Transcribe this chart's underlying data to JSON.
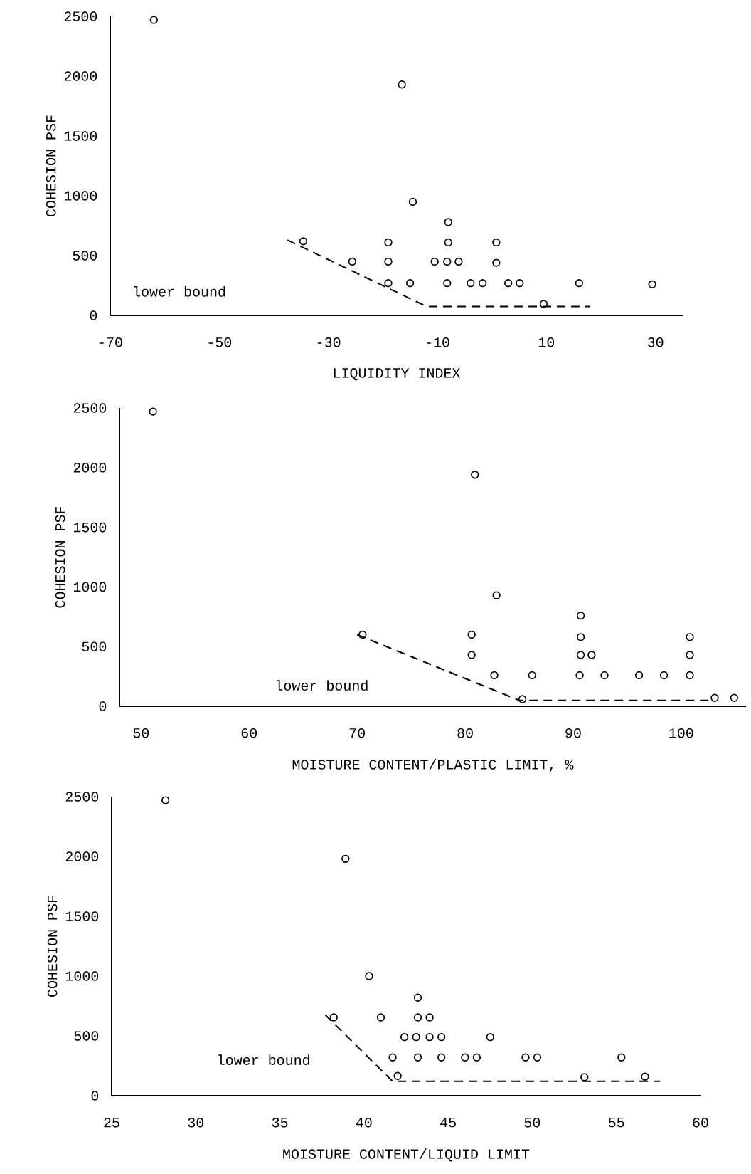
{
  "chart_data": [
    {
      "type": "scatter",
      "xlabel": "LIQUIDITY INDEX",
      "ylabel": "COHESION PSF",
      "xlim": [
        -70,
        35
      ],
      "ylim": [
        0,
        2500
      ],
      "xticks": [
        -70,
        -50,
        -30,
        -10,
        10,
        30
      ],
      "yticks": [
        0,
        500,
        1000,
        1500,
        2000,
        2500
      ],
      "marker": "circle",
      "grid": false,
      "series": [
        {
          "color": "#000000",
          "x": [
            -62,
            -16.5,
            -14.5,
            -8,
            -34.6,
            -19,
            -8,
            0.8,
            -25.6,
            -19,
            -10.5,
            -8.2,
            -6.1,
            0.8,
            -19,
            -15,
            -8.2,
            -3.9,
            -1.7,
            3,
            5.1,
            16,
            29.4,
            9.5
          ],
          "values": [
            2470,
            1930,
            950,
            780,
            620,
            610,
            610,
            610,
            450,
            450,
            450,
            450,
            450,
            440,
            270,
            270,
            270,
            270,
            270,
            270,
            270,
            270,
            260,
            95
          ]
        },
        {
          "type": "line",
          "name": "lower bound",
          "color": "#000000",
          "line_style": "dashed",
          "marker": "none",
          "x": [
            -37.5,
            -12,
            18
          ],
          "values": [
            630,
            75,
            75
          ]
        }
      ]
    },
    {
      "type": "scatter",
      "xlabel": "MOISTURE CONTENT/PLASTIC LIMIT, %",
      "ylabel": "COHESION PSF",
      "xlim": [
        48,
        106
      ],
      "ylim": [
        0,
        2500
      ],
      "xticks": [
        50,
        60,
        70,
        80,
        90,
        100
      ],
      "yticks": [
        0,
        500,
        1000,
        1500,
        2000,
        2500
      ],
      "marker": "circle",
      "grid": false,
      "series": [
        {
          "color": "#000000",
          "x": [
            51.1,
            80.9,
            82.9,
            90.7,
            70.5,
            80.6,
            90.7,
            100.8,
            80.6,
            90.7,
            91.7,
            100.8,
            82.7,
            86.2,
            90.6,
            92.9,
            96.1,
            98.4,
            100.8,
            85.3,
            103.1,
            104.9
          ],
          "values": [
            2470,
            1940,
            930,
            760,
            600,
            600,
            580,
            580,
            430,
            430,
            430,
            430,
            260,
            260,
            260,
            260,
            260,
            260,
            260,
            60,
            70,
            70
          ]
        },
        {
          "type": "line",
          "name": "lower bound",
          "color": "#000000",
          "line_style": "dashed",
          "marker": "none",
          "x": [
            70,
            85,
            103
          ],
          "values": [
            600,
            50,
            50
          ]
        }
      ]
    },
    {
      "type": "scatter",
      "xlabel": "MOISTURE CONTENT/LIQUID LIMIT",
      "ylabel": "COHESION PSF",
      "xlim": [
        25,
        60
      ],
      "ylim": [
        0,
        2500
      ],
      "xticks": [
        25,
        30,
        35,
        40,
        45,
        50,
        55,
        60
      ],
      "yticks": [
        0,
        500,
        1000,
        1500,
        2000,
        2500
      ],
      "marker": "circle",
      "grid": false,
      "series": [
        {
          "color": "#000000",
          "x": [
            28.2,
            38.9,
            40.3,
            43.2,
            38.2,
            41.0,
            43.2,
            43.9,
            42.4,
            43.1,
            43.9,
            44.6,
            47.5,
            41.7,
            43.2,
            44.6,
            46.0,
            46.7,
            49.6,
            50.3,
            55.3,
            42.0,
            53.1,
            56.7
          ],
          "values": [
            2470,
            1980,
            1000,
            820,
            655,
            655,
            655,
            655,
            490,
            490,
            490,
            490,
            490,
            320,
            320,
            320,
            320,
            320,
            320,
            320,
            320,
            165,
            155,
            160
          ]
        },
        {
          "type": "line",
          "name": "lower bound",
          "color": "#000000",
          "line_style": "dashed",
          "marker": "none",
          "x": [
            37.7,
            41.7,
            57.6
          ],
          "values": [
            675,
            120,
            120
          ]
        }
      ]
    }
  ]
}
